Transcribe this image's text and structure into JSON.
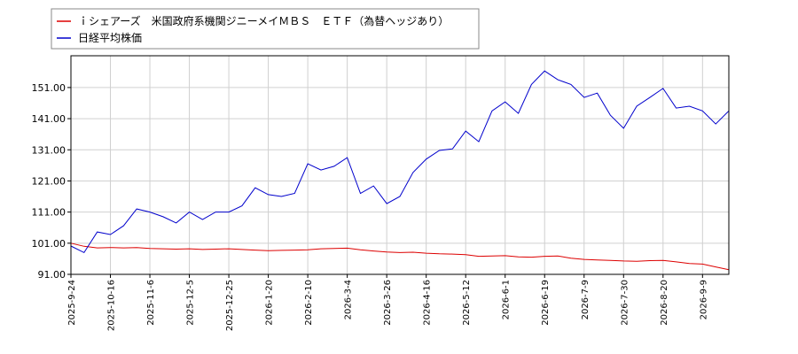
{
  "chart_data": {
    "type": "line",
    "x": [
      "2025-9-24",
      null,
      null,
      "2025-10-16",
      null,
      null,
      "2025-11-6",
      null,
      null,
      "2025-12-5",
      null,
      null,
      "2025-12-25",
      null,
      null,
      "2026-1-20",
      null,
      null,
      "2026-2-10",
      null,
      null,
      "2026-3-4",
      null,
      null,
      "2026-3-26",
      null,
      null,
      "2026-4-16",
      null,
      null,
      "2026-5-12",
      null,
      null,
      "2026-6-1",
      null,
      null,
      "2026-6-19",
      null,
      null,
      "2026-7-9",
      null,
      null,
      "2026-7-30",
      null,
      null,
      "2026-8-20",
      null,
      null,
      "2026-9-9",
      null,
      null
    ],
    "series": [
      {
        "name": "ｉシェアーズ　米国政府系機関ジニーメイＭＢＳ　ＥＴＦ（為替ヘッジあり）",
        "color": "#dd0000",
        "values": [
          101,
          100,
          99.5,
          99.6,
          99.5,
          99.6,
          99.3,
          99.2,
          99.1,
          99.2,
          99.0,
          99.1,
          99.2,
          99.0,
          98.8,
          98.6,
          98.7,
          98.8,
          98.9,
          99.2,
          99.3,
          99.4,
          98.9,
          98.5,
          98.2,
          98.0,
          98.1,
          97.8,
          97.6,
          97.5,
          97.3,
          96.8,
          96.9,
          97.0,
          96.6,
          96.5,
          96.8,
          96.9,
          96.2,
          95.8,
          95.6,
          95.5,
          95.3,
          95.2,
          95.4,
          95.5,
          95.0,
          94.5,
          94.3,
          93.4,
          92.5
        ]
      },
      {
        "name": "日経平均株価",
        "color": "#0000cc",
        "values": [
          100.1,
          98,
          104.6,
          103.8,
          106.6,
          112,
          111,
          109.5,
          107.5,
          111,
          108.6,
          111,
          111,
          113,
          118.8,
          116.6,
          116,
          117,
          126.5,
          124.5,
          125.7,
          128.5,
          117,
          119.4,
          113.7,
          116,
          123.7,
          128,
          130.8,
          131.3,
          137,
          133.6,
          143.5,
          146.4,
          142.7,
          152,
          156.3,
          153.5,
          152,
          147.8,
          149.2,
          142.1,
          137.9,
          145,
          147.8,
          150.7,
          144.4,
          145,
          143.5,
          139.3,
          143.5
        ]
      }
    ],
    "ylim": [
      91,
      161.2
    ],
    "yticks": [
      {
        "value": 91,
        "label": "91.00"
      },
      {
        "value": 101,
        "label": "101.00"
      },
      {
        "value": 111,
        "label": "111.00"
      },
      {
        "value": 121,
        "label": "121.00"
      },
      {
        "value": 131,
        "label": "131.00"
      },
      {
        "value": 141,
        "label": "141.00"
      },
      {
        "value": 151,
        "label": "151.00"
      }
    ],
    "grid": true
  }
}
